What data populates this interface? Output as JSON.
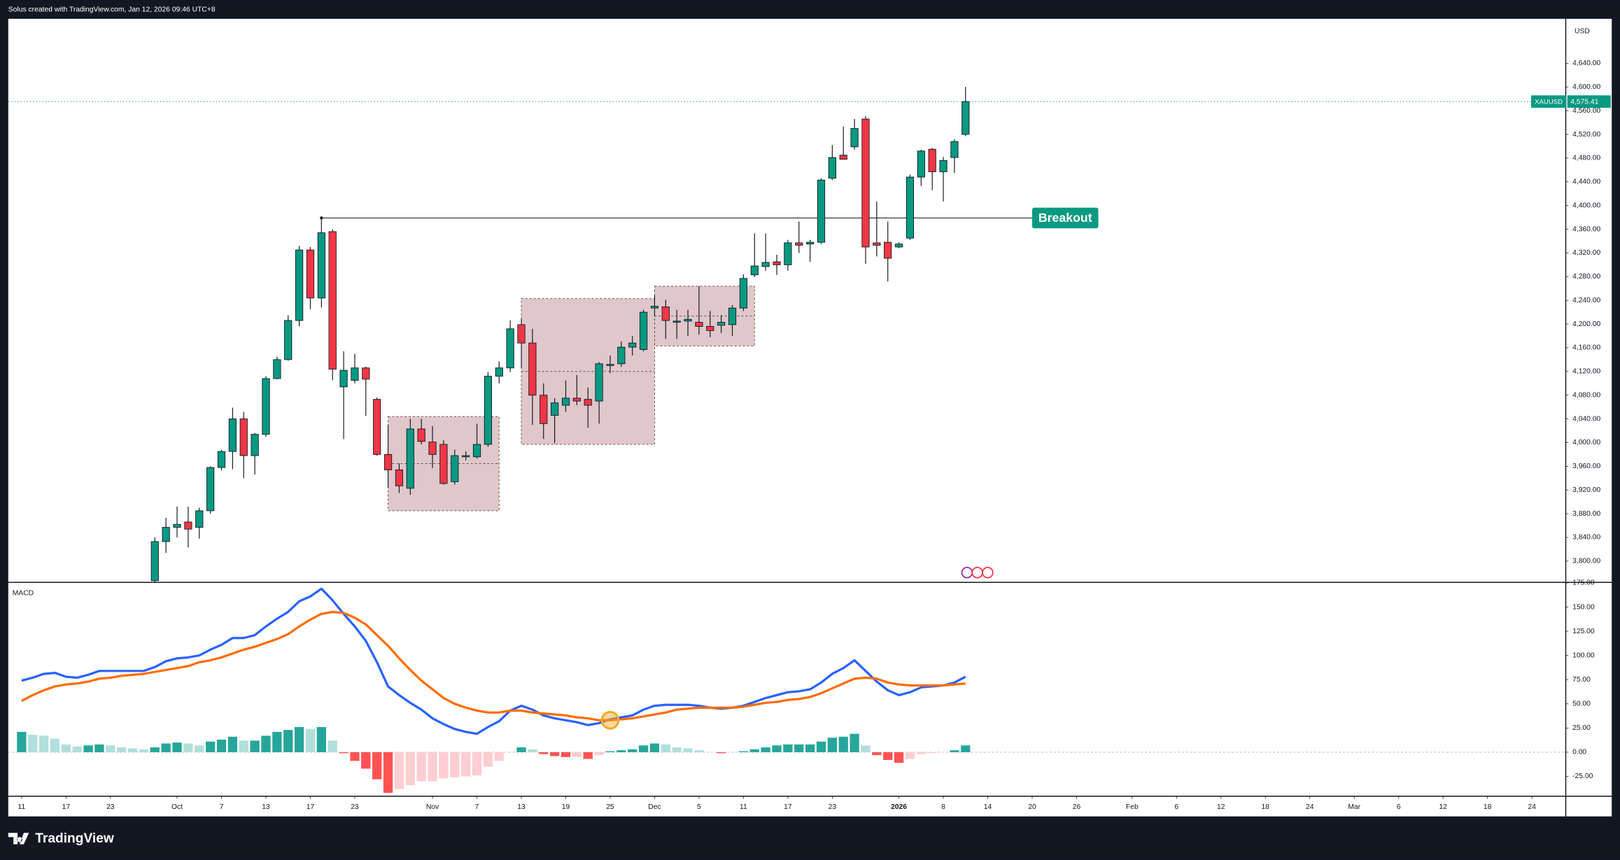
{
  "header": {
    "text": "Solus created with TradingView.com, Jan 12, 2026 09:46 UTC+8"
  },
  "footer": {
    "logo": "TradingView"
  },
  "chart_data": [
    {
      "type": "candlestick",
      "symbol": "XAUUSD",
      "currency": "USD",
      "x": [
        12,
        13,
        14,
        15,
        16,
        17,
        18,
        19,
        20,
        21,
        22,
        23,
        24,
        25,
        26,
        27,
        28,
        29,
        30,
        31,
        32,
        33,
        34,
        35,
        36,
        37,
        38,
        39,
        40,
        41,
        42,
        43,
        44,
        45,
        46,
        47,
        48,
        49,
        50,
        51,
        52,
        53,
        54,
        55,
        56,
        57,
        58,
        59,
        60,
        61,
        62,
        63,
        64,
        65,
        66,
        67,
        68,
        69,
        70,
        71,
        72,
        73,
        74,
        75,
        76,
        77,
        78,
        79,
        80,
        81,
        82,
        83,
        84,
        85
      ],
      "open": [
        3767,
        3833,
        3857,
        3866,
        3857,
        3885,
        3958,
        3985,
        4040,
        3978,
        4014,
        4108,
        4140,
        4206,
        4325,
        4244,
        4356,
        4094,
        4105,
        4126,
        4073,
        3980,
        3954,
        3923,
        4023,
        4001,
        3997,
        3934,
        3976,
        3976,
        3997,
        4112,
        4126,
        4199,
        4168,
        4080,
        4046,
        4063,
        4075,
        4073,
        4070,
        4130,
        4133,
        4161,
        4157,
        4227,
        4229,
        4203,
        4205,
        4203,
        4196,
        4198,
        4199,
        4227,
        4283,
        4297,
        4305,
        4300,
        4337,
        4335,
        4338,
        4446,
        4485,
        4499,
        4546,
        4337,
        4338,
        4330,
        4345,
        4448,
        4495,
        4457,
        4481,
        4520
      ],
      "high": [
        3840,
        3873,
        3892,
        3892,
        3890,
        3960,
        3988,
        4059,
        4052,
        4016,
        4112,
        4145,
        4215,
        4332,
        4330,
        4381,
        4360,
        4154,
        4150,
        4128,
        4076,
        4030,
        3965,
        4040,
        4040,
        4028,
        4004,
        3988,
        3985,
        4032,
        4119,
        4137,
        4206,
        4209,
        4192,
        4100,
        4075,
        4105,
        4114,
        4093,
        4136,
        4147,
        4171,
        4180,
        4224,
        4248,
        4241,
        4224,
        4224,
        4264,
        4222,
        4215,
        4232,
        4284,
        4353,
        4353,
        4317,
        4342,
        4373,
        4342,
        4446,
        4502,
        4533,
        4546,
        4551,
        4407,
        4373,
        4338,
        4452,
        4494,
        4497,
        4482,
        4512,
        4600
      ],
      "low": [
        3745,
        3814,
        3840,
        3823,
        3838,
        3880,
        3953,
        3955,
        3940,
        3946,
        4010,
        4107,
        4138,
        4196,
        4225,
        4228,
        4105,
        4006,
        4100,
        4045,
        3978,
        3924,
        3915,
        3912,
        3997,
        3957,
        3929,
        3929,
        3970,
        3973,
        3993,
        4100,
        4119,
        4126,
        4030,
        4006,
        3999,
        4052,
        4063,
        4025,
        4032,
        4117,
        4128,
        4147,
        4154,
        4213,
        4175,
        4175,
        4180,
        4182,
        4178,
        4185,
        4180,
        4222,
        4279,
        4290,
        4283,
        4290,
        4320,
        4305,
        4335,
        4443,
        4480,
        4494,
        4302,
        4314,
        4272,
        4328,
        4342,
        4433,
        4426,
        4407,
        4455,
        4517
      ],
      "close": [
        3833,
        3857,
        3862,
        3854,
        3885,
        3958,
        3985,
        4040,
        3978,
        4014,
        4108,
        4140,
        4206,
        4325,
        4244,
        4354,
        4124,
        4122,
        4126,
        4107,
        3980,
        3954,
        3927,
        4023,
        4002,
        3980,
        3931,
        3978,
        3978,
        3997,
        4112,
        4126,
        4192,
        4168,
        4080,
        4032,
        4067,
        4075,
        4070,
        4063,
        4133,
        4132,
        4161,
        4168,
        4220,
        4230,
        4206,
        4205,
        4208,
        4196,
        4189,
        4203,
        4227,
        4277,
        4298,
        4304,
        4300,
        4337,
        4333,
        4338,
        4443,
        4481,
        4478,
        4530,
        4330,
        4333,
        4311,
        4335,
        4448,
        4492,
        4457,
        4476,
        4508,
        4575.41
      ],
      "up_color": "#089981",
      "down_color": "#f23645",
      "xlim": [
        -1.2,
        139
      ],
      "ylim": [
        3765,
        4715
      ],
      "yticks": [
        {
          "value": 4640,
          "label": "4,640.00"
        },
        {
          "value": 4600,
          "label": "4,600.00"
        },
        {
          "value": 4560,
          "label": "4,560.00"
        },
        {
          "value": 4520,
          "label": "4,520.00"
        },
        {
          "value": 4480,
          "label": "4,480.00"
        },
        {
          "value": 4440,
          "label": "4,440.00"
        },
        {
          "value": 4400,
          "label": "4,400.00"
        },
        {
          "value": 4360,
          "label": "4,360.00"
        },
        {
          "value": 4320,
          "label": "4,320.00"
        },
        {
          "value": 4280,
          "label": "4,280.00"
        },
        {
          "value": 4240,
          "label": "4,240.00"
        },
        {
          "value": 4200,
          "label": "4,200.00"
        },
        {
          "value": 4160,
          "label": "4,160.00"
        },
        {
          "value": 4120,
          "label": "4,120.00"
        },
        {
          "value": 4080,
          "label": "4,080.00"
        },
        {
          "value": 4040,
          "label": "4,040.00"
        },
        {
          "value": 4000,
          "label": "4,000.00"
        },
        {
          "value": 3960,
          "label": "3,960.00"
        },
        {
          "value": 3920,
          "label": "3,920.00"
        },
        {
          "value": 3880,
          "label": "3,880.00"
        },
        {
          "value": 3840,
          "label": "3,840.00"
        },
        {
          "value": 3800,
          "label": "3,800.00"
        }
      ],
      "last_price": {
        "value": 4575.41,
        "label": "4,575.41"
      },
      "ranges": [
        {
          "x": [
            33,
            43
          ],
          "y": [
            3885,
            4044
          ]
        },
        {
          "x": [
            45,
            57
          ],
          "y": [
            3997,
            4243
          ]
        },
        {
          "x": [
            57,
            66
          ],
          "y": [
            4163,
            4264
          ]
        }
      ],
      "range_color": "#dcc1c5",
      "annotations": [
        {
          "text": "Breakout",
          "x": [
            27,
            91
          ],
          "y": 4379,
          "color": "#089981"
        }
      ]
    },
    {
      "type": "macd",
      "title": "MACD",
      "x": [
        0,
        1,
        2,
        3,
        4,
        5,
        6,
        7,
        8,
        9,
        10,
        11,
        12,
        13,
        14,
        15,
        16,
        17,
        18,
        19,
        20,
        21,
        22,
        23,
        24,
        25,
        26,
        27,
        28,
        29,
        30,
        31,
        32,
        33,
        34,
        35,
        36,
        37,
        38,
        39,
        40,
        41,
        42,
        43,
        44,
        45,
        46,
        47,
        48,
        49,
        50,
        51,
        52,
        53,
        54,
        55,
        56,
        57,
        58,
        59,
        60,
        61,
        62,
        63,
        64,
        65,
        66,
        67,
        68,
        69,
        70,
        71,
        72,
        73,
        74,
        75,
        76,
        77,
        78,
        79,
        80,
        81,
        82,
        83,
        84,
        85
      ],
      "series": [
        {
          "color": "#2962ff",
          "values": [
            74,
            77,
            81,
            82,
            78,
            77,
            80,
            84,
            84,
            84,
            84,
            84,
            88,
            94,
            97,
            98,
            100,
            106,
            111,
            118,
            118,
            121,
            130,
            138,
            145,
            156,
            161,
            169,
            157,
            143,
            130,
            115,
            93,
            68,
            59,
            51,
            44,
            35,
            29,
            24,
            21,
            19,
            26,
            32,
            43,
            48,
            44,
            38,
            35,
            33,
            31,
            28,
            30,
            34,
            36,
            38,
            44,
            48,
            49,
            49,
            49,
            48,
            46,
            45,
            46,
            48,
            52,
            56,
            59,
            62,
            63,
            65,
            72,
            81,
            87,
            95,
            84,
            73,
            64,
            59,
            62,
            67,
            68,
            69,
            72,
            78
          ]
        },
        {
          "color": "#ff6d00",
          "values": [
            53,
            59,
            64,
            68,
            70,
            71,
            73,
            76,
            77,
            79,
            80,
            81,
            83,
            85,
            87,
            89,
            93,
            95,
            98,
            102,
            106,
            109,
            113,
            117,
            122,
            130,
            137,
            143,
            145,
            144,
            139,
            132,
            121,
            110,
            97,
            85,
            74,
            65,
            56,
            50,
            46,
            43,
            41,
            41,
            43,
            43,
            41,
            40,
            39,
            38,
            36,
            35,
            33,
            33,
            34,
            35,
            37,
            39,
            41,
            44,
            45,
            46,
            46,
            46,
            46,
            47,
            49,
            51,
            52,
            54,
            55,
            57,
            61,
            66,
            71,
            76,
            77,
            76,
            72,
            70,
            69,
            69,
            69,
            69,
            70,
            71
          ]
        }
      ],
      "histogram": {
        "values": [
          21,
          18,
          17,
          14,
          8,
          6,
          7,
          8,
          7,
          5,
          4,
          3,
          5,
          9,
          10,
          9,
          7,
          11,
          13,
          16,
          12,
          12,
          17,
          21,
          23,
          26,
          24,
          26,
          12,
          -1,
          -9,
          -17,
          -28,
          -42,
          -38,
          -34,
          -30,
          -30,
          -27,
          -26,
          -25,
          -24,
          -15,
          -9,
          0,
          5,
          3,
          -2,
          -4,
          -5,
          -5,
          -7,
          -3,
          1,
          2,
          3,
          7,
          9,
          8,
          5,
          4,
          2,
          0,
          -1,
          0,
          1,
          3,
          5,
          7,
          8,
          8,
          8,
          11,
          15,
          16,
          19,
          7,
          -3,
          -8,
          -11,
          -7,
          -2,
          -1,
          0,
          2,
          7
        ],
        "colors": {
          "up_rising": "#26a69a",
          "up_falling": "#b2dfdb",
          "down_falling": "#ff5252",
          "down_rising": "#ffcdd2"
        }
      },
      "marker": {
        "x": 53,
        "y": 33,
        "color": "#f9a825"
      },
      "xlim": [
        -1.2,
        139
      ],
      "ylim": [
        -45,
        175
      ],
      "yticks": [
        {
          "value": 175,
          "label": "175.00"
        },
        {
          "value": 150,
          "label": "150.00"
        },
        {
          "value": 125,
          "label": "125.00"
        },
        {
          "value": 100,
          "label": "100.00"
        },
        {
          "value": 75,
          "label": "75.00"
        },
        {
          "value": 50,
          "label": "50.00"
        },
        {
          "value": 25,
          "label": "25.00"
        },
        {
          "value": 0,
          "label": "0.00"
        },
        {
          "value": -25,
          "label": "-25.00"
        }
      ],
      "xticks": [
        {
          "value": 0,
          "label": "11"
        },
        {
          "value": 4,
          "label": "17"
        },
        {
          "value": 8,
          "label": "23"
        },
        {
          "value": 14,
          "label": "Oct"
        },
        {
          "value": 18,
          "label": "7"
        },
        {
          "value": 22,
          "label": "13"
        },
        {
          "value": 26,
          "label": "17"
        },
        {
          "value": 30,
          "label": "23"
        },
        {
          "value": 37,
          "label": "Nov"
        },
        {
          "value": 41,
          "label": "7"
        },
        {
          "value": 45,
          "label": "13"
        },
        {
          "value": 49,
          "label": "19"
        },
        {
          "value": 53,
          "label": "25"
        },
        {
          "value": 57,
          "label": "Dec"
        },
        {
          "value": 61,
          "label": "5"
        },
        {
          "value": 65,
          "label": "11"
        },
        {
          "value": 69,
          "label": "17"
        },
        {
          "value": 73,
          "label": "23"
        },
        {
          "value": 79,
          "label": "2026"
        },
        {
          "value": 83,
          "label": "8"
        },
        {
          "value": 87,
          "label": "14"
        },
        {
          "value": 91,
          "label": "20"
        },
        {
          "value": 95,
          "label": "26"
        },
        {
          "value": 100,
          "label": "Feb"
        },
        {
          "value": 104,
          "label": "6"
        },
        {
          "value": 108,
          "label": "12"
        },
        {
          "value": 112,
          "label": "18"
        },
        {
          "value": 116,
          "label": "24"
        },
        {
          "value": 120,
          "label": "Mar"
        },
        {
          "value": 124,
          "label": "6"
        },
        {
          "value": 128,
          "label": "12"
        },
        {
          "value": 132,
          "label": "18"
        },
        {
          "value": 136,
          "label": "24"
        }
      ]
    }
  ]
}
